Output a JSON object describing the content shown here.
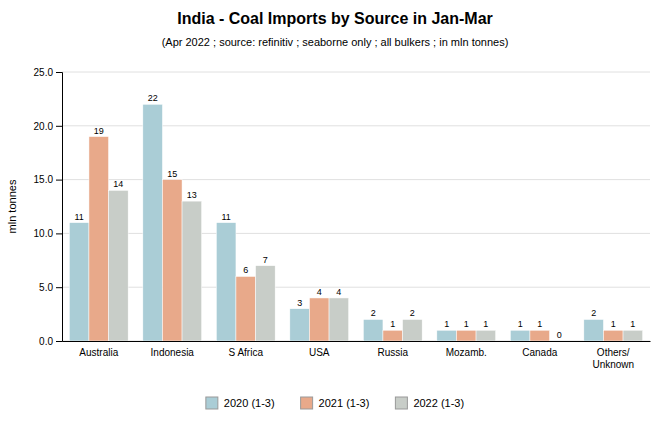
{
  "chart_data": {
    "type": "bar",
    "title": "India - Coal Imports by Source in Jan-Mar",
    "subtitle": "(Apr 2022 ; source: refinitiv ; seaborne only ; all bulkers ; in mln tonnes)",
    "categories": [
      "Australia",
      "Indonesia",
      "S Africa",
      "USA",
      "Russia",
      "Mozamb.",
      "Canada",
      "Others/\nUnknown"
    ],
    "series": [
      {
        "name": "2020 (1-3)",
        "color": "#aacdd6",
        "values": [
          11,
          22,
          11,
          3,
          2,
          1,
          1,
          2
        ]
      },
      {
        "name": "2021 (1-3)",
        "color": "#e8a98a",
        "values": [
          19,
          15,
          6,
          4,
          1,
          1,
          1,
          1
        ]
      },
      {
        "name": "2022 (1-3)",
        "color": "#c8cdc8",
        "values": [
          14,
          13,
          7,
          4,
          2,
          1,
          0,
          1
        ]
      }
    ],
    "ylabel": "mln tonnes",
    "ylim": [
      0,
      25.0
    ],
    "yticks": [
      {
        "value": 0.0,
        "label": "0.0"
      },
      {
        "value": 5.0,
        "label": "5.0"
      },
      {
        "value": 10.0,
        "label": "10.0"
      },
      {
        "value": 15.0,
        "label": "15.0"
      },
      {
        "value": 20.0,
        "label": "20.0"
      },
      {
        "value": 25.0,
        "label": "25.0"
      }
    ],
    "grid": true,
    "data_labels": true,
    "legend": "bottom"
  }
}
